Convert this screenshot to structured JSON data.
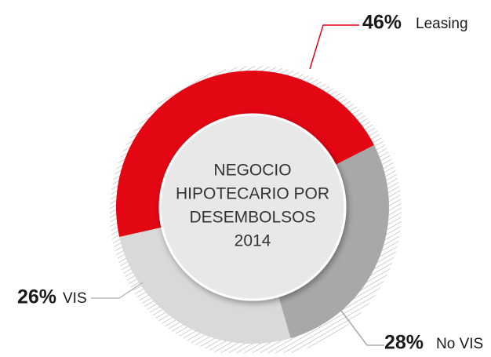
{
  "chart_data": {
    "type": "donut",
    "center_text": [
      "NEGOCIO",
      "HIPOTECARIO POR",
      "DESEMBOLSOS",
      "2014"
    ],
    "categories": [
      "Leasing",
      "No VIS",
      "VIS"
    ],
    "values": [
      46,
      28,
      26
    ],
    "value_labels": [
      "46%",
      "28%",
      "26%"
    ],
    "colors": [
      "#e30613",
      "#a8a8a8",
      "#d9d9d9"
    ]
  }
}
